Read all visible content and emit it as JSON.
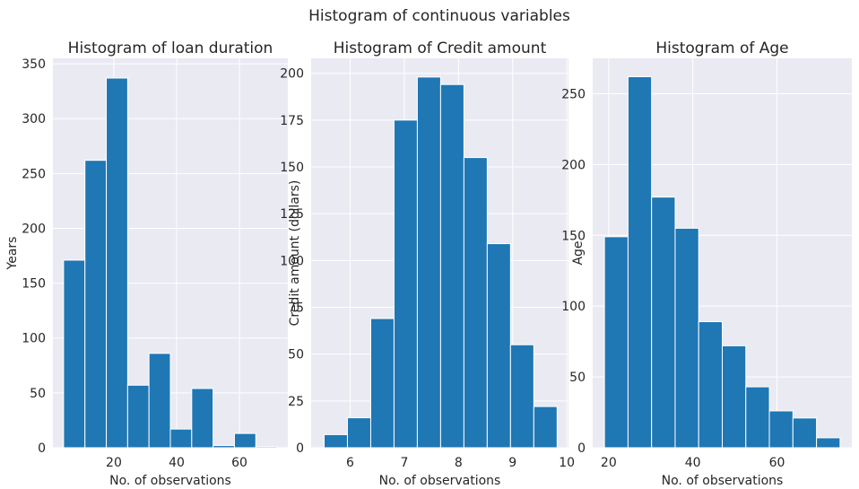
{
  "figure": {
    "title": "Histogram of continuous variables"
  },
  "chart_data": [
    {
      "type": "bar",
      "title": "Histogram of loan duration",
      "xlabel": "No. of observations",
      "ylabel": "Years",
      "xlim": [
        0.6,
        75.4
      ],
      "ylim": [
        0,
        355
      ],
      "xticks": [
        20,
        40,
        60
      ],
      "yticks": [
        0,
        50,
        100,
        150,
        200,
        250,
        300,
        350
      ],
      "bin_edges": [
        4,
        10.8,
        17.6,
        24.4,
        31.2,
        38,
        44.8,
        51.6,
        58.4,
        65.2,
        72
      ],
      "values": [
        171,
        262,
        337,
        57,
        86,
        17,
        54,
        2,
        13,
        1
      ],
      "grid": true
    },
    {
      "type": "bar",
      "title": "Histogram of Credit amount",
      "xlabel": "No. of observations",
      "ylabel": "Credit amount (dollars)",
      "xlim": [
        5.28,
        10.03
      ],
      "ylim": [
        0,
        208
      ],
      "xticks": [
        6,
        7,
        8,
        9,
        10
      ],
      "yticks": [
        0,
        25,
        50,
        75,
        100,
        125,
        150,
        175,
        200
      ],
      "bin_edges": [
        5.52,
        5.95,
        6.38,
        6.81,
        7.24,
        7.67,
        8.1,
        8.53,
        8.96,
        9.39,
        9.82
      ],
      "values": [
        7,
        16,
        69,
        175,
        198,
        194,
        155,
        109,
        55,
        22
      ],
      "grid": true
    },
    {
      "type": "bar",
      "title": "Histogram of Age",
      "xlabel": "No. of observations",
      "ylabel": "Age",
      "xlim": [
        16.2,
        77.8
      ],
      "ylim": [
        0,
        275
      ],
      "xticks": [
        20,
        40,
        60
      ],
      "yticks": [
        0,
        50,
        100,
        150,
        200,
        250
      ],
      "bin_edges": [
        19,
        24.6,
        30.2,
        35.8,
        41.4,
        47,
        52.6,
        58.2,
        63.8,
        69.4,
        75
      ],
      "values": [
        149,
        262,
        177,
        155,
        89,
        72,
        43,
        26,
        21,
        7
      ],
      "grid": true
    }
  ]
}
